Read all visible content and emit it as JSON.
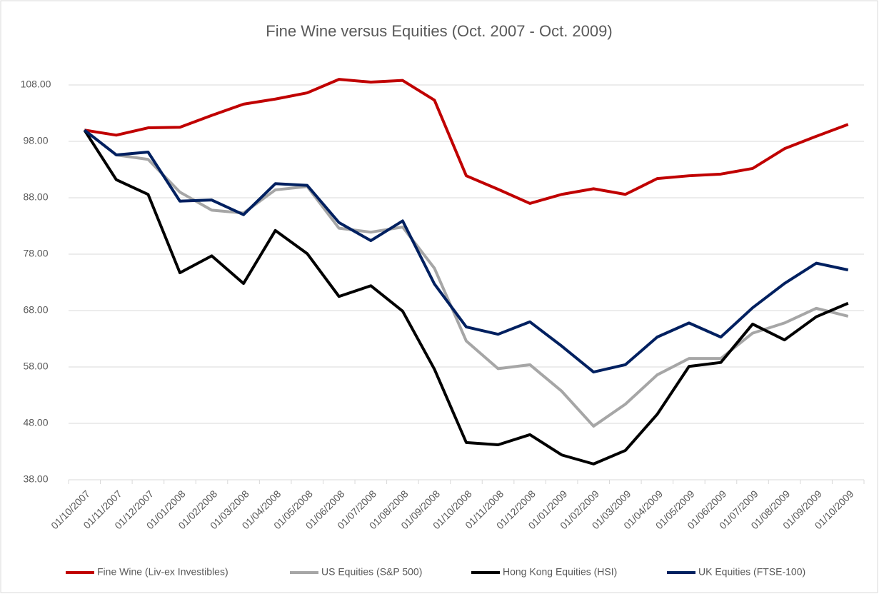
{
  "chart_data": {
    "type": "line",
    "title": "Fine Wine versus Equities (Oct. 2007 - Oct. 2009)",
    "categories": [
      "01/10/2007",
      "01/11/2007",
      "01/12/2007",
      "01/01/2008",
      "01/02/2008",
      "01/03/2008",
      "01/04/2008",
      "01/05/2008",
      "01/06/2008",
      "01/07/2008",
      "01/08/2008",
      "01/09/2008",
      "01/10/2008",
      "01/11/2008",
      "01/12/2008",
      "01/01/2009",
      "01/02/2009",
      "01/03/2009",
      "01/04/2009",
      "01/05/2009",
      "01/06/2009",
      "01/07/2009",
      "01/08/2009",
      "01/09/2009",
      "01/10/2009"
    ],
    "series": [
      {
        "name": "Fine Wine (Liv-ex Investibles)",
        "color": "#c00000",
        "values": [
          100,
          99.1,
          100.4,
          100.5,
          102.6,
          104.6,
          105.5,
          106.6,
          109,
          108.5,
          108.8,
          105.3,
          91.9,
          89.5,
          87,
          88.6,
          89.6,
          88.6,
          91.4,
          91.9,
          92.2,
          93.2,
          96.7,
          98.9,
          101
        ]
      },
      {
        "name": "US Equities (S&P 500)",
        "color": "#a6a6a6",
        "values": [
          100,
          95.6,
          94.8,
          89,
          85.8,
          85.3,
          89.4,
          90,
          82.6,
          81.9,
          82.8,
          75.5,
          62.6,
          57.7,
          58.4,
          53.7,
          47.5,
          51.4,
          56.6,
          59.5,
          59.5,
          64,
          65.8,
          68.4,
          67
        ]
      },
      {
        "name": "Hong Kong Equities (HSI)",
        "color": "#000000",
        "values": [
          100,
          91.2,
          88.6,
          74.7,
          77.7,
          72.8,
          82.2,
          78.1,
          70.5,
          72.4,
          67.9,
          57.6,
          44.6,
          44.2,
          46,
          42.4,
          40.8,
          43.2,
          49.6,
          58.1,
          58.8,
          65.6,
          62.8,
          66.9,
          69.3
        ]
      },
      {
        "name": "UK Equities (FTSE-100)",
        "color": "#002060",
        "values": [
          100,
          95.6,
          96.1,
          87.4,
          87.6,
          85,
          90.5,
          90.2,
          83.6,
          80.4,
          83.9,
          72.7,
          65.1,
          63.8,
          66,
          61.7,
          57.1,
          58.4,
          63.3,
          65.8,
          63.3,
          68.5,
          72.8,
          76.4,
          75.2
        ]
      }
    ],
    "ylim": [
      38,
      108
    ],
    "yticks": [
      {
        "value": 38,
        "label": "38.00"
      },
      {
        "value": 48,
        "label": "48.00"
      },
      {
        "value": 58,
        "label": "58.00"
      },
      {
        "value": 68,
        "label": "68.00"
      },
      {
        "value": 78,
        "label": "78.00"
      },
      {
        "value": 88,
        "label": "88.00"
      },
      {
        "value": 98,
        "label": "98.00"
      },
      {
        "value": 108,
        "label": "108.00"
      }
    ],
    "grid": true,
    "legend": "bottom"
  }
}
